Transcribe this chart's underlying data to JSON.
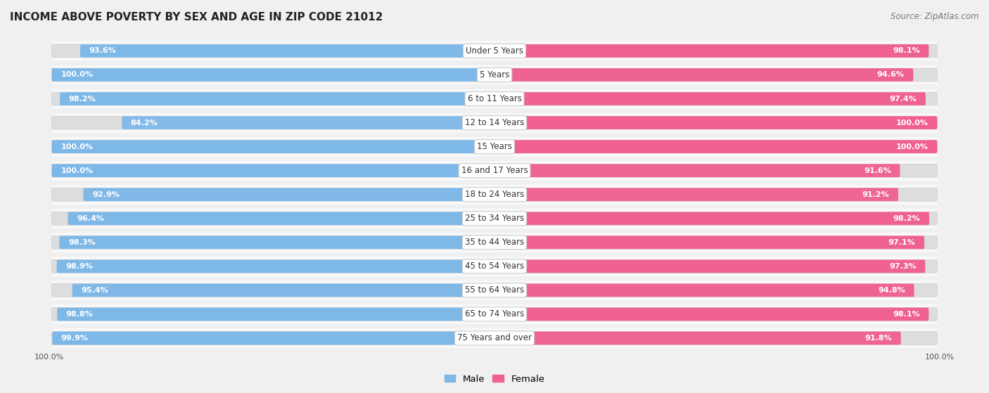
{
  "title": "INCOME ABOVE POVERTY BY SEX AND AGE IN ZIP CODE 21012",
  "source": "Source: ZipAtlas.com",
  "categories": [
    "Under 5 Years",
    "5 Years",
    "6 to 11 Years",
    "12 to 14 Years",
    "15 Years",
    "16 and 17 Years",
    "18 to 24 Years",
    "25 to 34 Years",
    "35 to 44 Years",
    "45 to 54 Years",
    "55 to 64 Years",
    "65 to 74 Years",
    "75 Years and over"
  ],
  "male_values": [
    93.6,
    100.0,
    98.2,
    84.2,
    100.0,
    100.0,
    92.9,
    96.4,
    98.3,
    98.9,
    95.4,
    98.8,
    99.9
  ],
  "female_values": [
    98.1,
    94.6,
    97.4,
    100.0,
    100.0,
    91.6,
    91.2,
    98.2,
    97.1,
    97.3,
    94.8,
    98.1,
    91.8
  ],
  "male_color": "#7db8e8",
  "male_color_light": "#b8d8f0",
  "female_color": "#f06090",
  "female_color_light": "#f8b8cc",
  "male_label": "Male",
  "female_label": "Female",
  "background_color": "#f0f0f0",
  "bar_bg_color": "#e8e8e8",
  "row_bg_color": "#ffffff",
  "bar_height": 0.55,
  "x_tick_label_bottom_left": "100.0%",
  "x_tick_label_bottom_right": "100.0%",
  "title_fontsize": 11,
  "label_fontsize": 8.5,
  "value_fontsize": 8,
  "source_fontsize": 8.5
}
